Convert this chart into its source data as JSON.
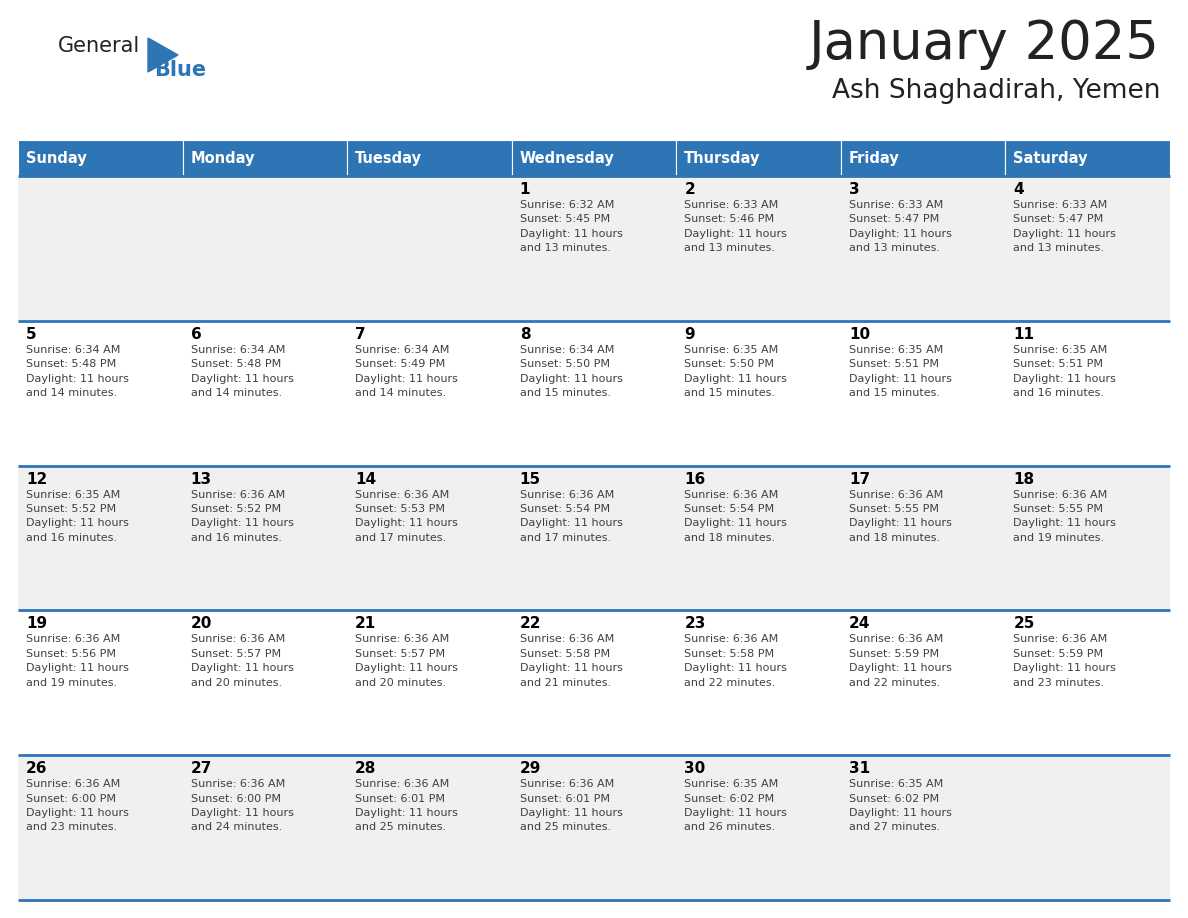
{
  "title": "January 2025",
  "subtitle": "Ash Shaghadirah, Yemen",
  "days_of_week": [
    "Sunday",
    "Monday",
    "Tuesday",
    "Wednesday",
    "Thursday",
    "Friday",
    "Saturday"
  ],
  "header_bg": "#2E75B6",
  "header_text": "#FFFFFF",
  "row_bg_odd": "#F0F0F0",
  "row_bg_even": "#FFFFFF",
  "cell_border": "#2E75B6",
  "day_num_color": "#000000",
  "info_text_color": "#404040",
  "title_color": "#222222",
  "subtitle_color": "#222222",
  "logo_general_color": "#222222",
  "logo_blue_color": "#2E75B6",
  "figwidth": 11.88,
  "figheight": 9.18,
  "dpi": 100,
  "calendar": [
    [
      {
        "day": 0,
        "info": ""
      },
      {
        "day": 0,
        "info": ""
      },
      {
        "day": 0,
        "info": ""
      },
      {
        "day": 1,
        "info": "Sunrise: 6:32 AM\nSunset: 5:45 PM\nDaylight: 11 hours\nand 13 minutes."
      },
      {
        "day": 2,
        "info": "Sunrise: 6:33 AM\nSunset: 5:46 PM\nDaylight: 11 hours\nand 13 minutes."
      },
      {
        "day": 3,
        "info": "Sunrise: 6:33 AM\nSunset: 5:47 PM\nDaylight: 11 hours\nand 13 minutes."
      },
      {
        "day": 4,
        "info": "Sunrise: 6:33 AM\nSunset: 5:47 PM\nDaylight: 11 hours\nand 13 minutes."
      }
    ],
    [
      {
        "day": 5,
        "info": "Sunrise: 6:34 AM\nSunset: 5:48 PM\nDaylight: 11 hours\nand 14 minutes."
      },
      {
        "day": 6,
        "info": "Sunrise: 6:34 AM\nSunset: 5:48 PM\nDaylight: 11 hours\nand 14 minutes."
      },
      {
        "day": 7,
        "info": "Sunrise: 6:34 AM\nSunset: 5:49 PM\nDaylight: 11 hours\nand 14 minutes."
      },
      {
        "day": 8,
        "info": "Sunrise: 6:34 AM\nSunset: 5:50 PM\nDaylight: 11 hours\nand 15 minutes."
      },
      {
        "day": 9,
        "info": "Sunrise: 6:35 AM\nSunset: 5:50 PM\nDaylight: 11 hours\nand 15 minutes."
      },
      {
        "day": 10,
        "info": "Sunrise: 6:35 AM\nSunset: 5:51 PM\nDaylight: 11 hours\nand 15 minutes."
      },
      {
        "day": 11,
        "info": "Sunrise: 6:35 AM\nSunset: 5:51 PM\nDaylight: 11 hours\nand 16 minutes."
      }
    ],
    [
      {
        "day": 12,
        "info": "Sunrise: 6:35 AM\nSunset: 5:52 PM\nDaylight: 11 hours\nand 16 minutes."
      },
      {
        "day": 13,
        "info": "Sunrise: 6:36 AM\nSunset: 5:52 PM\nDaylight: 11 hours\nand 16 minutes."
      },
      {
        "day": 14,
        "info": "Sunrise: 6:36 AM\nSunset: 5:53 PM\nDaylight: 11 hours\nand 17 minutes."
      },
      {
        "day": 15,
        "info": "Sunrise: 6:36 AM\nSunset: 5:54 PM\nDaylight: 11 hours\nand 17 minutes."
      },
      {
        "day": 16,
        "info": "Sunrise: 6:36 AM\nSunset: 5:54 PM\nDaylight: 11 hours\nand 18 minutes."
      },
      {
        "day": 17,
        "info": "Sunrise: 6:36 AM\nSunset: 5:55 PM\nDaylight: 11 hours\nand 18 minutes."
      },
      {
        "day": 18,
        "info": "Sunrise: 6:36 AM\nSunset: 5:55 PM\nDaylight: 11 hours\nand 19 minutes."
      }
    ],
    [
      {
        "day": 19,
        "info": "Sunrise: 6:36 AM\nSunset: 5:56 PM\nDaylight: 11 hours\nand 19 minutes."
      },
      {
        "day": 20,
        "info": "Sunrise: 6:36 AM\nSunset: 5:57 PM\nDaylight: 11 hours\nand 20 minutes."
      },
      {
        "day": 21,
        "info": "Sunrise: 6:36 AM\nSunset: 5:57 PM\nDaylight: 11 hours\nand 20 minutes."
      },
      {
        "day": 22,
        "info": "Sunrise: 6:36 AM\nSunset: 5:58 PM\nDaylight: 11 hours\nand 21 minutes."
      },
      {
        "day": 23,
        "info": "Sunrise: 6:36 AM\nSunset: 5:58 PM\nDaylight: 11 hours\nand 22 minutes."
      },
      {
        "day": 24,
        "info": "Sunrise: 6:36 AM\nSunset: 5:59 PM\nDaylight: 11 hours\nand 22 minutes."
      },
      {
        "day": 25,
        "info": "Sunrise: 6:36 AM\nSunset: 5:59 PM\nDaylight: 11 hours\nand 23 minutes."
      }
    ],
    [
      {
        "day": 26,
        "info": "Sunrise: 6:36 AM\nSunset: 6:00 PM\nDaylight: 11 hours\nand 23 minutes."
      },
      {
        "day": 27,
        "info": "Sunrise: 6:36 AM\nSunset: 6:00 PM\nDaylight: 11 hours\nand 24 minutes."
      },
      {
        "day": 28,
        "info": "Sunrise: 6:36 AM\nSunset: 6:01 PM\nDaylight: 11 hours\nand 25 minutes."
      },
      {
        "day": 29,
        "info": "Sunrise: 6:36 AM\nSunset: 6:01 PM\nDaylight: 11 hours\nand 25 minutes."
      },
      {
        "day": 30,
        "info": "Sunrise: 6:35 AM\nSunset: 6:02 PM\nDaylight: 11 hours\nand 26 minutes."
      },
      {
        "day": 31,
        "info": "Sunrise: 6:35 AM\nSunset: 6:02 PM\nDaylight: 11 hours\nand 27 minutes."
      },
      {
        "day": 0,
        "info": ""
      }
    ]
  ]
}
